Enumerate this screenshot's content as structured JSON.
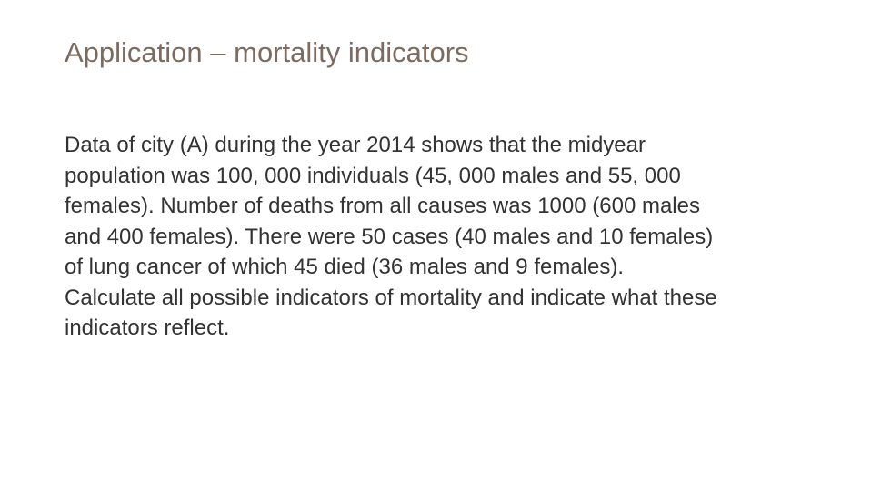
{
  "slide": {
    "title": "Application – mortality indicators",
    "body_lines": [
      "Data of city (A) during the year 2014 shows that the midyear",
      "population was 100, 000 individuals (45, 000 males and 55, 000",
      "females). Number of deaths from all causes was 1000 (600 males",
      "and 400 females). There were 50 cases (40 males and 10 females)",
      "of lung cancer of which 45 died (36 males and 9 females).",
      "Calculate all possible indicators of mortality and indicate what these",
      "indicators reflect."
    ]
  },
  "colors": {
    "background": "#ffffff",
    "title": "#7b6b60",
    "body": "#333333"
  }
}
